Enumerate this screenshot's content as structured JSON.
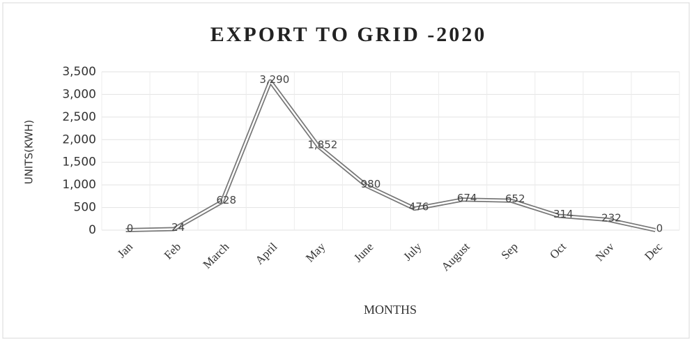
{
  "chart_data": {
    "type": "line",
    "title": "EXPORT TO GRID -2020",
    "x_label": "MONTHS",
    "y_label": "UNITS(KWH)",
    "categories": [
      "Jan",
      "Feb",
      "March",
      "April",
      "May",
      "June",
      "July",
      "August",
      "Sep",
      "Oct",
      "Nov",
      "Dec"
    ],
    "series": [
      {
        "name": "Export",
        "color": "#777777",
        "values": [
          0,
          24,
          628,
          3290,
          1852,
          980,
          476,
          674,
          652,
          314,
          232,
          0
        ],
        "value_labels": [
          "0",
          "24",
          "628",
          "3,290",
          "1,852",
          "980",
          "476",
          "674",
          "652",
          "314",
          "232",
          "0"
        ]
      }
    ],
    "ylim": [
      0,
      3500
    ],
    "yticks": [
      0,
      500,
      {
        "value": 1000,
        "label": "1,000"
      },
      {
        "value": 1500,
        "label": "1,500"
      },
      {
        "value": 2000,
        "label": "2,000"
      },
      {
        "value": 2500,
        "label": "2,500"
      },
      {
        "value": 3000,
        "label": "3,000"
      },
      {
        "value": 3500,
        "label": "3,500"
      }
    ],
    "grid": true
  }
}
